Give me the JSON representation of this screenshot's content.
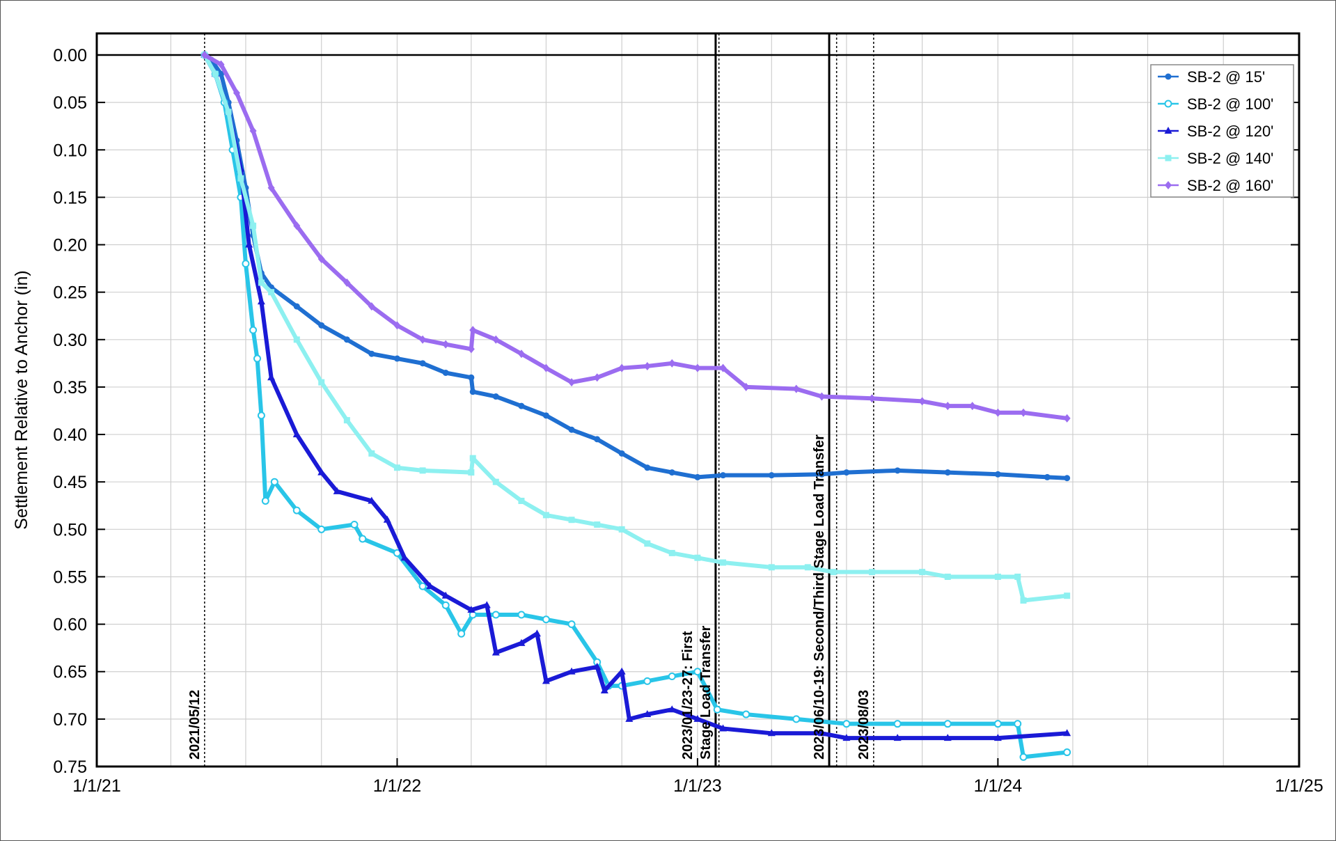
{
  "chart_data": {
    "type": "line",
    "ylabel": "Settlement Relative to Anchor (in)",
    "y_inverted": true,
    "ylim": [
      0.0,
      0.75
    ],
    "y_ticks": [
      "0.00",
      "0.05",
      "0.10",
      "0.15",
      "0.20",
      "0.25",
      "0.30",
      "0.35",
      "0.40",
      "0.45",
      "0.50",
      "0.55",
      "0.60",
      "0.65",
      "0.70",
      "0.75"
    ],
    "xlim": [
      "2021-01-01",
      "2025-01-01"
    ],
    "x_ticks": [
      {
        "date": "2021-01-01",
        "label": "1/1/21"
      },
      {
        "date": "2022-01-01",
        "label": "1/1/22"
      },
      {
        "date": "2023-01-01",
        "label": "1/1/23"
      },
      {
        "date": "2024-01-01",
        "label": "1/1/24"
      },
      {
        "date": "2025-01-01",
        "label": "1/1/25"
      }
    ],
    "grid": true,
    "legend_position": "top-right",
    "annotations": [
      {
        "date": "2021-05-12",
        "style": "dotted",
        "label_lines": [
          "2021/05/12"
        ]
      },
      {
        "date": "2023-01-23",
        "style": "solid",
        "label_lines": [
          "2023/01/23-27: First",
          "Stage Load Transfer"
        ]
      },
      {
        "date": "2023-01-27",
        "style": "dotted",
        "label_lines": []
      },
      {
        "date": "2023-06-10",
        "style": "solid",
        "label_lines": [
          "2023/06/10-19: Second/Third Stage Load Transfer"
        ]
      },
      {
        "date": "2023-06-19",
        "style": "dotted",
        "label_lines": []
      },
      {
        "date": "2023-08-03",
        "style": "dotted",
        "label_lines": [
          "2023/08/03"
        ]
      }
    ],
    "series": [
      {
        "name": "SB-2 @ 15'",
        "color": "#1f6fd1",
        "marker": "circle-filled",
        "points": [
          [
            "2021-05-12",
            0.0
          ],
          [
            "2021-05-20",
            0.005
          ],
          [
            "2021-06-01",
            0.02
          ],
          [
            "2021-06-10",
            0.05
          ],
          [
            "2021-06-20",
            0.09
          ],
          [
            "2021-07-01",
            0.14
          ],
          [
            "2021-07-10",
            0.19
          ],
          [
            "2021-07-20",
            0.23
          ],
          [
            "2021-08-01",
            0.245
          ],
          [
            "2021-09-01",
            0.265
          ],
          [
            "2021-10-01",
            0.285
          ],
          [
            "2021-11-01",
            0.3
          ],
          [
            "2021-12-01",
            0.315
          ],
          [
            "2022-01-01",
            0.32
          ],
          [
            "2022-02-01",
            0.325
          ],
          [
            "2022-03-01",
            0.335
          ],
          [
            "2022-04-01",
            0.34
          ],
          [
            "2022-04-03",
            0.355
          ],
          [
            "2022-05-01",
            0.36
          ],
          [
            "2022-06-01",
            0.37
          ],
          [
            "2022-07-01",
            0.38
          ],
          [
            "2022-08-01",
            0.395
          ],
          [
            "2022-09-01",
            0.405
          ],
          [
            "2022-10-01",
            0.42
          ],
          [
            "2022-11-01",
            0.435
          ],
          [
            "2022-12-01",
            0.44
          ],
          [
            "2023-01-01",
            0.445
          ],
          [
            "2023-02-01",
            0.443
          ],
          [
            "2023-04-01",
            0.443
          ],
          [
            "2023-06-01",
            0.442
          ],
          [
            "2023-07-01",
            0.44
          ],
          [
            "2023-09-01",
            0.438
          ],
          [
            "2023-11-01",
            0.44
          ],
          [
            "2024-01-01",
            0.442
          ],
          [
            "2024-03-01",
            0.445
          ],
          [
            "2024-03-25",
            0.446
          ]
        ]
      },
      {
        "name": "SB-2 @ 100'",
        "color": "#29c5e8",
        "marker": "circle-open",
        "points": [
          [
            "2021-05-12",
            0.0
          ],
          [
            "2021-05-25",
            0.02
          ],
          [
            "2021-06-05",
            0.05
          ],
          [
            "2021-06-15",
            0.1
          ],
          [
            "2021-06-25",
            0.15
          ],
          [
            "2021-07-01",
            0.22
          ],
          [
            "2021-07-10",
            0.29
          ],
          [
            "2021-07-15",
            0.32
          ],
          [
            "2021-07-20",
            0.38
          ],
          [
            "2021-07-25",
            0.47
          ],
          [
            "2021-08-05",
            0.45
          ],
          [
            "2021-09-01",
            0.48
          ],
          [
            "2021-10-01",
            0.5
          ],
          [
            "2021-11-10",
            0.495
          ],
          [
            "2021-11-20",
            0.51
          ],
          [
            "2022-01-01",
            0.525
          ],
          [
            "2022-02-01",
            0.56
          ],
          [
            "2022-03-01",
            0.58
          ],
          [
            "2022-03-20",
            0.61
          ],
          [
            "2022-04-03",
            0.59
          ],
          [
            "2022-05-01",
            0.59
          ],
          [
            "2022-06-01",
            0.59
          ],
          [
            "2022-07-01",
            0.595
          ],
          [
            "2022-08-01",
            0.6
          ],
          [
            "2022-09-01",
            0.64
          ],
          [
            "2022-09-15",
            0.665
          ],
          [
            "2022-10-01",
            0.665
          ],
          [
            "2022-11-01",
            0.66
          ],
          [
            "2022-12-01",
            0.655
          ],
          [
            "2023-01-01",
            0.65
          ],
          [
            "2023-01-25",
            0.69
          ],
          [
            "2023-03-01",
            0.695
          ],
          [
            "2023-05-01",
            0.7
          ],
          [
            "2023-07-01",
            0.705
          ],
          [
            "2023-09-01",
            0.705
          ],
          [
            "2023-11-01",
            0.705
          ],
          [
            "2024-01-01",
            0.705
          ],
          [
            "2024-01-25",
            0.705
          ],
          [
            "2024-02-01",
            0.74
          ],
          [
            "2024-03-25",
            0.735
          ]
        ]
      },
      {
        "name": "SB-2 @ 120'",
        "color": "#1a1ad6",
        "marker": "triangle-filled",
        "points": [
          [
            "2021-05-12",
            0.0
          ],
          [
            "2021-05-25",
            0.02
          ],
          [
            "2021-06-10",
            0.06
          ],
          [
            "2021-06-25",
            0.12
          ],
          [
            "2021-07-05",
            0.2
          ],
          [
            "2021-07-20",
            0.26
          ],
          [
            "2021-08-01",
            0.34
          ],
          [
            "2021-09-01",
            0.4
          ],
          [
            "2021-10-01",
            0.44
          ],
          [
            "2021-10-20",
            0.46
          ],
          [
            "2021-12-01",
            0.47
          ],
          [
            "2021-12-20",
            0.49
          ],
          [
            "2022-01-10",
            0.53
          ],
          [
            "2022-02-10",
            0.56
          ],
          [
            "2022-03-01",
            0.57
          ],
          [
            "2022-04-01",
            0.585
          ],
          [
            "2022-04-20",
            0.58
          ],
          [
            "2022-05-01",
            0.63
          ],
          [
            "2022-06-01",
            0.62
          ],
          [
            "2022-06-20",
            0.61
          ],
          [
            "2022-07-01",
            0.66
          ],
          [
            "2022-08-01",
            0.65
          ],
          [
            "2022-09-01",
            0.645
          ],
          [
            "2022-09-10",
            0.67
          ],
          [
            "2022-10-01",
            0.65
          ],
          [
            "2022-10-10",
            0.7
          ],
          [
            "2022-11-01",
            0.695
          ],
          [
            "2022-12-01",
            0.69
          ],
          [
            "2023-01-01",
            0.7
          ],
          [
            "2023-02-01",
            0.71
          ],
          [
            "2023-04-01",
            0.715
          ],
          [
            "2023-06-01",
            0.715
          ],
          [
            "2023-07-01",
            0.72
          ],
          [
            "2023-09-01",
            0.72
          ],
          [
            "2023-11-01",
            0.72
          ],
          [
            "2024-01-01",
            0.72
          ],
          [
            "2024-03-25",
            0.715
          ]
        ]
      },
      {
        "name": "SB-2 @ 140'",
        "color": "#8df0f0",
        "marker": "square-filled",
        "points": [
          [
            "2021-05-12",
            0.0
          ],
          [
            "2021-05-25",
            0.02
          ],
          [
            "2021-06-10",
            0.06
          ],
          [
            "2021-06-25",
            0.13
          ],
          [
            "2021-07-10",
            0.18
          ],
          [
            "2021-07-20",
            0.24
          ],
          [
            "2021-08-01",
            0.25
          ],
          [
            "2021-09-01",
            0.3
          ],
          [
            "2021-10-01",
            0.345
          ],
          [
            "2021-11-01",
            0.385
          ],
          [
            "2021-12-01",
            0.42
          ],
          [
            "2022-01-01",
            0.435
          ],
          [
            "2022-02-01",
            0.438
          ],
          [
            "2022-04-01",
            0.44
          ],
          [
            "2022-04-03",
            0.425
          ],
          [
            "2022-05-01",
            0.45
          ],
          [
            "2022-06-01",
            0.47
          ],
          [
            "2022-07-01",
            0.485
          ],
          [
            "2022-08-01",
            0.49
          ],
          [
            "2022-09-01",
            0.495
          ],
          [
            "2022-10-01",
            0.5
          ],
          [
            "2022-11-01",
            0.515
          ],
          [
            "2022-12-01",
            0.525
          ],
          [
            "2023-01-01",
            0.53
          ],
          [
            "2023-02-01",
            0.535
          ],
          [
            "2023-04-01",
            0.54
          ],
          [
            "2023-05-15",
            0.54
          ],
          [
            "2023-06-15",
            0.545
          ],
          [
            "2023-08-01",
            0.545
          ],
          [
            "2023-10-01",
            0.545
          ],
          [
            "2023-11-01",
            0.55
          ],
          [
            "2024-01-01",
            0.55
          ],
          [
            "2024-01-25",
            0.55
          ],
          [
            "2024-02-01",
            0.575
          ],
          [
            "2024-03-25",
            0.57
          ]
        ]
      },
      {
        "name": "SB-2 @ 160'",
        "color": "#9b6cf0",
        "marker": "diamond-filled",
        "points": [
          [
            "2021-05-12",
            0.0
          ],
          [
            "2021-06-01",
            0.01
          ],
          [
            "2021-06-20",
            0.04
          ],
          [
            "2021-07-10",
            0.08
          ],
          [
            "2021-08-01",
            0.14
          ],
          [
            "2021-09-01",
            0.18
          ],
          [
            "2021-10-01",
            0.215
          ],
          [
            "2021-11-01",
            0.24
          ],
          [
            "2021-12-01",
            0.265
          ],
          [
            "2022-01-01",
            0.285
          ],
          [
            "2022-02-01",
            0.3
          ],
          [
            "2022-03-01",
            0.305
          ],
          [
            "2022-04-01",
            0.31
          ],
          [
            "2022-04-03",
            0.29
          ],
          [
            "2022-05-01",
            0.3
          ],
          [
            "2022-06-01",
            0.315
          ],
          [
            "2022-07-01",
            0.33
          ],
          [
            "2022-08-01",
            0.345
          ],
          [
            "2022-09-01",
            0.34
          ],
          [
            "2022-10-01",
            0.33
          ],
          [
            "2022-11-01",
            0.328
          ],
          [
            "2022-12-01",
            0.325
          ],
          [
            "2023-01-01",
            0.33
          ],
          [
            "2023-02-01",
            0.33
          ],
          [
            "2023-03-01",
            0.35
          ],
          [
            "2023-05-01",
            0.352
          ],
          [
            "2023-06-01",
            0.36
          ],
          [
            "2023-08-01",
            0.362
          ],
          [
            "2023-10-01",
            0.365
          ],
          [
            "2023-11-01",
            0.37
          ],
          [
            "2023-12-01",
            0.37
          ],
          [
            "2024-01-01",
            0.377
          ],
          [
            "2024-02-01",
            0.377
          ],
          [
            "2024-03-25",
            0.383
          ]
        ]
      }
    ]
  }
}
